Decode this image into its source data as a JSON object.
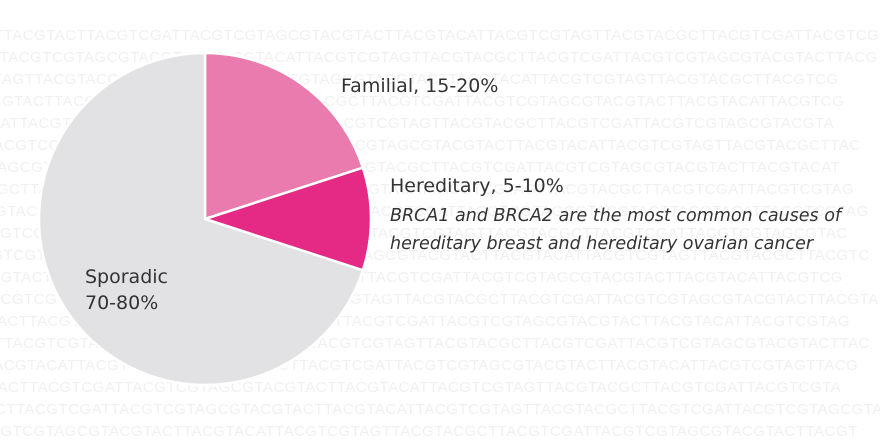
{
  "chart_data": {
    "type": "pie",
    "slices": [
      {
        "label": "Familial",
        "range": "15-20%",
        "value": 20,
        "color": "#e97bae"
      },
      {
        "label": "Hereditary",
        "range": "5-10%",
        "value": 10,
        "color": "#e52a85"
      },
      {
        "label": "Sporadic",
        "range": "70-80%",
        "value": 70,
        "color": "#e2e2e4"
      }
    ],
    "labels": {
      "familial": "Familial, 15-20%",
      "hereditary": "Hereditary, 5-10%",
      "hereditary_note_line1": "BRCA1 and BRCA2 are the most common causes of",
      "hereditary_note_line2": "hereditary breast and hereditary ovarian cancer",
      "sporadic_line1": "Sporadic",
      "sporadic_line2": "70-80%"
    }
  }
}
